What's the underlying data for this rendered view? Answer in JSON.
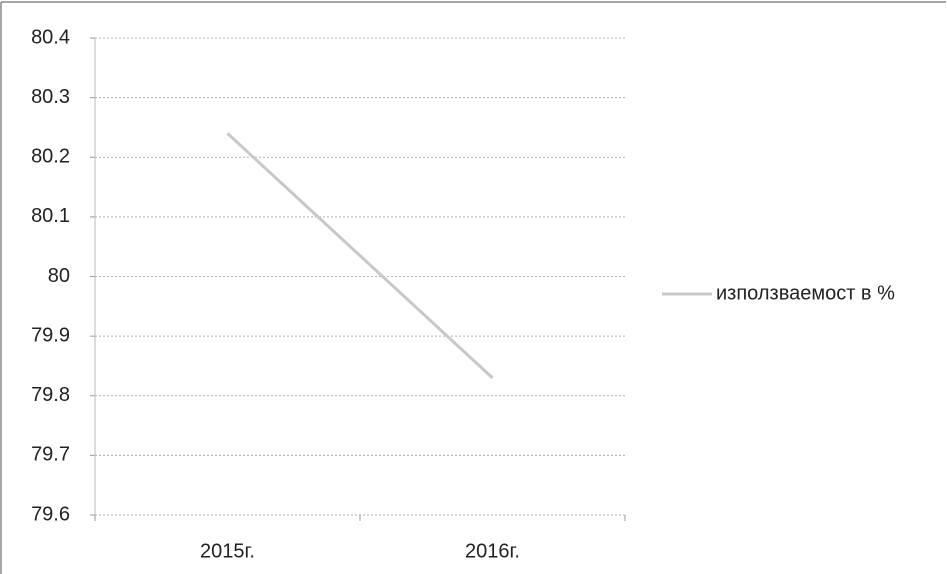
{
  "chart_data": {
    "type": "line",
    "categories": [
      "2015г.",
      "2016г."
    ],
    "series": [
      {
        "name": "използваемост в %",
        "color": "#c8c8c8",
        "values": [
          80.24,
          79.83
        ]
      }
    ],
    "ylim": [
      79.6,
      80.4
    ],
    "yticks": [
      79.6,
      79.7,
      79.8,
      79.9,
      80,
      80.1,
      80.2,
      80.3,
      80.4
    ],
    "grid": true,
    "legend": "right"
  }
}
